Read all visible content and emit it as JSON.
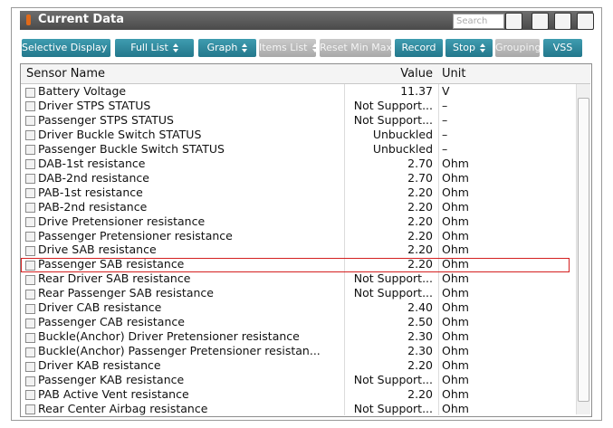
{
  "header": {
    "title": "Current Data",
    "search_placeholder": "Search"
  },
  "toolbar": [
    {
      "label": "Selective Display",
      "dropdown": true,
      "enabled": true
    },
    {
      "label": "Full List",
      "dropdown": true,
      "enabled": true
    },
    {
      "label": "Graph",
      "dropdown": true,
      "enabled": true
    },
    {
      "label": "Items List",
      "dropdown": true,
      "enabled": false
    },
    {
      "label": "Reset Min Max",
      "dropdown": false,
      "enabled": false
    },
    {
      "label": "Record",
      "dropdown": false,
      "enabled": true
    },
    {
      "label": "Stop",
      "dropdown": true,
      "enabled": true
    },
    {
      "label": "Grouping",
      "dropdown": false,
      "enabled": false
    },
    {
      "label": "VSS",
      "dropdown": false,
      "enabled": true
    }
  ],
  "table": {
    "columns": [
      "Sensor Name",
      "Value",
      "Unit"
    ],
    "rows": [
      [
        "Battery Voltage",
        "11.37",
        "V"
      ],
      [
        "Driver STPS STATUS",
        "Not Support...",
        "–"
      ],
      [
        "Passenger STPS STATUS",
        "Not Support...",
        "–"
      ],
      [
        "Driver Buckle Switch STATUS",
        "Unbuckled",
        "–"
      ],
      [
        "Passenger Buckle Switch STATUS",
        "Unbuckled",
        "–"
      ],
      [
        "DAB-1st resistance",
        "2.70",
        "Ohm"
      ],
      [
        "DAB-2nd resistance",
        "2.70",
        "Ohm"
      ],
      [
        "PAB-1st resistance",
        "2.20",
        "Ohm"
      ],
      [
        "PAB-2nd resistance",
        "2.20",
        "Ohm"
      ],
      [
        "Drive Pretensioner resistance",
        "2.20",
        "Ohm"
      ],
      [
        "Passenger Pretensioner resistance",
        "2.20",
        "Ohm"
      ],
      [
        "Drive SAB resistance",
        "2.20",
        "Ohm"
      ],
      [
        "Passenger SAB resistance",
        "2.20",
        "Ohm"
      ],
      [
        "Rear Driver SAB resistance",
        "Not Support...",
        "Ohm"
      ],
      [
        "Rear Passenger SAB resistance",
        "Not Support...",
        "Ohm"
      ],
      [
        "Driver CAB resistance",
        "2.40",
        "Ohm"
      ],
      [
        "Passenger CAB resistance",
        "2.50",
        "Ohm"
      ],
      [
        "Buckle(Anchor) Driver Pretensioner resistance",
        "2.30",
        "Ohm"
      ],
      [
        "Buckle(Anchor) Passenger Pretensioner resistan...",
        "2.30",
        "Ohm"
      ],
      [
        "Driver KAB resistance",
        "2.20",
        "Ohm"
      ],
      [
        "Passenger KAB resistance",
        "Not Support...",
        "Ohm"
      ],
      [
        "PAB Active Vent resistance",
        "2.20",
        "Ohm"
      ],
      [
        "Rear Center Airbag resistance",
        "Not Support...",
        "Ohm"
      ]
    ]
  }
}
